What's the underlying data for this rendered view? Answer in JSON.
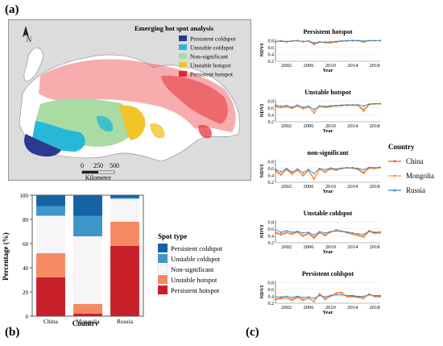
{
  "labels": {
    "a": "(a)",
    "b": "(b)",
    "c": "(c)"
  },
  "map": {
    "title": "Emerging hot spot analysis",
    "legend": [
      {
        "name": "Persistent coldspot",
        "color": "#2b3a8f"
      },
      {
        "name": "Unstable coldspot",
        "color": "#27b8d8"
      },
      {
        "name": "Non-significant",
        "color": "#a9dca3"
      },
      {
        "name": "Unstable hotspot",
        "color": "#f2c42a"
      },
      {
        "name": "Persistent hotspot",
        "color": "#e5262d"
      }
    ],
    "north_label": "N",
    "scalebar": {
      "ticks": [
        "0",
        "250",
        "500"
      ],
      "unit": "Kilometer"
    }
  },
  "chart_data": [
    {
      "type": "bar",
      "stacked": true,
      "categories": [
        "China",
        "Mongolia",
        "Russia"
      ],
      "xlabel": "Country",
      "ylabel": "Percentage (%)",
      "ylim": [
        0,
        100
      ],
      "yticks": [
        "0",
        "20",
        "40",
        "60",
        "80",
        "100"
      ],
      "legend_title": "Spot type",
      "legend_position": "right",
      "series": [
        {
          "name": "Persistent hotspot",
          "color": "#c7202a",
          "values": [
            32,
            2,
            58
          ]
        },
        {
          "name": "Unstable hotspot",
          "color": "#f58a62",
          "values": [
            20,
            8,
            20
          ]
        },
        {
          "name": "Non-significant",
          "color": "#f7f5f8",
          "values": [
            31,
            56,
            19
          ]
        },
        {
          "name": "Unstable coldspot",
          "color": "#3f96c8",
          "values": [
            8,
            17,
            1
          ]
        },
        {
          "name": "Persistent coldspot",
          "color": "#1662a6",
          "values": [
            9,
            17,
            2
          ]
        }
      ]
    },
    {
      "type": "line",
      "panels": [
        {
          "title": "Persistent hotspot",
          "china": [
            0.76,
            0.79,
            0.76,
            0.78,
            0.8,
            0.76,
            0.78,
            0.68,
            0.75,
            0.74,
            0.73,
            0.75,
            0.78,
            0.79,
            0.8,
            0.8,
            0.77,
            0.8,
            0.79,
            0.8
          ],
          "mongolia": [
            0.76,
            0.78,
            0.75,
            0.79,
            0.79,
            0.76,
            0.79,
            0.7,
            0.76,
            0.73,
            0.72,
            0.76,
            0.79,
            0.78,
            0.8,
            0.79,
            0.74,
            0.8,
            0.8,
            0.8
          ],
          "russia": [
            0.77,
            0.78,
            0.77,
            0.78,
            0.79,
            0.77,
            0.78,
            0.73,
            0.76,
            0.75,
            0.76,
            0.77,
            0.78,
            0.79,
            0.79,
            0.79,
            0.78,
            0.79,
            0.79,
            0.79
          ]
        },
        {
          "title": "Unstable hotspot",
          "china": [
            0.65,
            0.61,
            0.64,
            0.59,
            0.66,
            0.58,
            0.63,
            0.45,
            0.65,
            0.62,
            0.64,
            0.66,
            0.66,
            0.68,
            0.68,
            0.67,
            0.55,
            0.7,
            0.72,
            0.72
          ],
          "mongolia": [
            0.63,
            0.6,
            0.63,
            0.58,
            0.65,
            0.57,
            0.62,
            0.47,
            0.64,
            0.61,
            0.63,
            0.65,
            0.66,
            0.67,
            0.67,
            0.66,
            0.5,
            0.69,
            0.71,
            0.71
          ],
          "russia": [
            0.68,
            0.65,
            0.67,
            0.62,
            0.68,
            0.62,
            0.65,
            0.55,
            0.66,
            0.64,
            0.66,
            0.67,
            0.68,
            0.69,
            0.69,
            0.69,
            0.65,
            0.71,
            0.72,
            0.72
          ]
        },
        {
          "title": "non-significant",
          "china": [
            0.55,
            0.42,
            0.58,
            0.45,
            0.55,
            0.4,
            0.55,
            0.3,
            0.58,
            0.5,
            0.6,
            0.55,
            0.6,
            0.62,
            0.62,
            0.58,
            0.48,
            0.62,
            0.6,
            0.62
          ],
          "mongolia": [
            0.52,
            0.4,
            0.56,
            0.43,
            0.54,
            0.38,
            0.53,
            0.28,
            0.57,
            0.48,
            0.58,
            0.54,
            0.59,
            0.61,
            0.6,
            0.56,
            0.45,
            0.6,
            0.59,
            0.61
          ],
          "russia": [
            0.58,
            0.5,
            0.6,
            0.5,
            0.58,
            0.48,
            0.57,
            0.45,
            0.6,
            0.56,
            0.61,
            0.58,
            0.61,
            0.62,
            0.62,
            0.6,
            0.56,
            0.63,
            0.62,
            0.63
          ]
        },
        {
          "title": "Unstable coldspot",
          "china": [
            0.5,
            0.45,
            0.5,
            0.45,
            0.52,
            0.4,
            0.48,
            0.35,
            0.5,
            0.42,
            0.52,
            0.55,
            0.52,
            0.5,
            0.45,
            0.42,
            0.38,
            0.55,
            0.48,
            0.5
          ],
          "mongolia": [
            0.48,
            0.42,
            0.48,
            0.44,
            0.5,
            0.38,
            0.46,
            0.32,
            0.48,
            0.4,
            0.5,
            0.58,
            0.54,
            0.48,
            0.44,
            0.4,
            0.36,
            0.52,
            0.46,
            0.48
          ],
          "russia": [
            0.58,
            0.5,
            0.55,
            0.5,
            0.53,
            0.48,
            0.5,
            0.42,
            0.52,
            0.48,
            0.52,
            0.54,
            0.53,
            0.51,
            0.48,
            0.46,
            0.44,
            0.54,
            0.5,
            0.51
          ]
        },
        {
          "title": "Persistent coldspot",
          "china": [
            0.32,
            0.35,
            0.36,
            0.3,
            0.38,
            0.3,
            0.35,
            0.25,
            0.48,
            0.32,
            0.42,
            0.48,
            0.5,
            0.4,
            0.4,
            0.38,
            0.35,
            0.45,
            0.4,
            0.4
          ],
          "mongolia": [
            0.3,
            0.33,
            0.35,
            0.28,
            0.36,
            0.28,
            0.34,
            0.24,
            0.46,
            0.3,
            0.4,
            0.5,
            0.52,
            0.38,
            0.38,
            0.36,
            0.33,
            0.48,
            0.38,
            0.38
          ],
          "russia": [
            0.38,
            0.38,
            0.4,
            0.36,
            0.4,
            0.36,
            0.38,
            0.34,
            0.42,
            0.38,
            0.42,
            0.44,
            0.44,
            0.42,
            0.42,
            0.4,
            0.4,
            0.44,
            0.42,
            0.42
          ]
        }
      ],
      "x_start": 2000,
      "xticks": [
        "2002",
        "2006",
        "2010",
        "2014",
        "2018"
      ],
      "yticks": [
        "0.2",
        "0.4",
        "0.6",
        "0.8"
      ],
      "ylim": [
        0.2,
        0.85
      ],
      "ylabel": "NDVI",
      "xlabel": "Year",
      "legend_title": "Country",
      "legend": [
        {
          "name": "China",
          "color": "#f0542a"
        },
        {
          "name": "Mongolia",
          "color": "#f5932a"
        },
        {
          "name": "Russia",
          "color": "#2f86c2"
        }
      ]
    }
  ]
}
